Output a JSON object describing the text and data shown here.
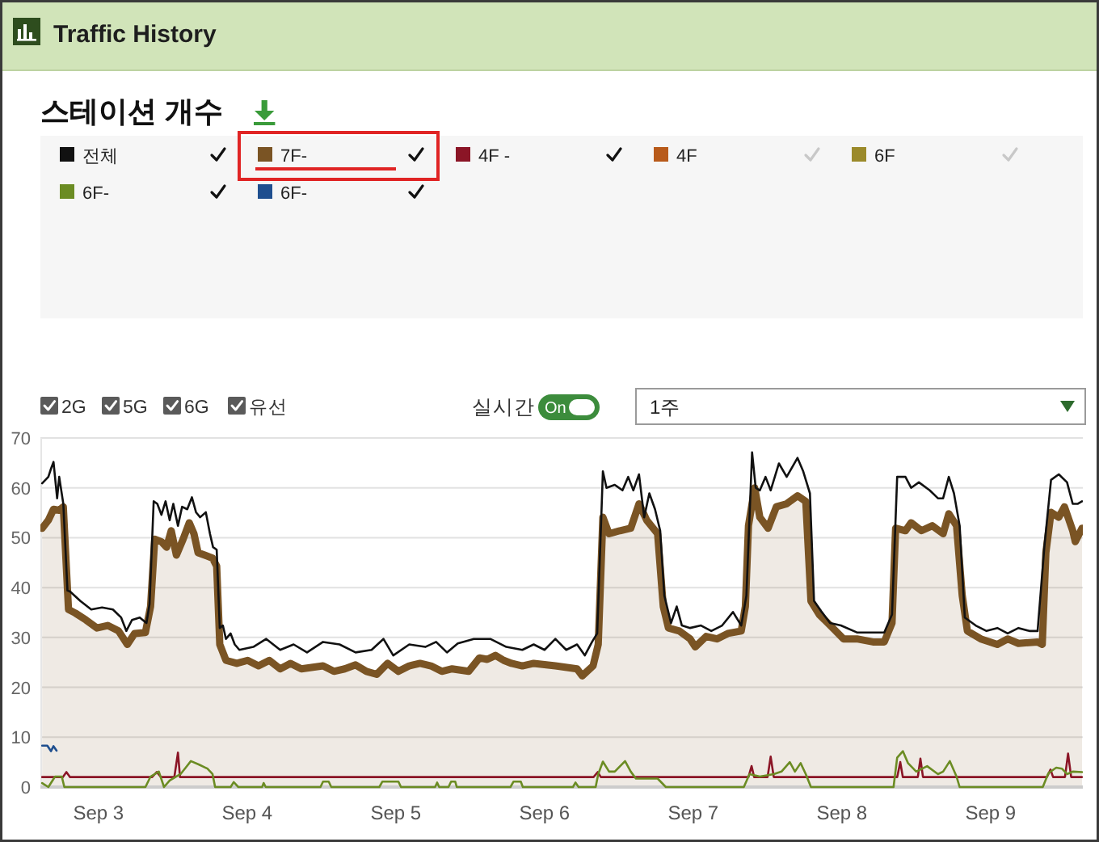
{
  "chart_data": {
    "type": "line",
    "title": "Traffic History",
    "subtitle": "스테이션 개수",
    "legend": "top",
    "grid": "y",
    "xlim": [
      "--09-02T14:38",
      "--09-09T14:53"
    ],
    "xticks": [
      {
        "value": "--09-03",
        "label": "Sep 3"
      },
      {
        "value": "--09-04",
        "label": "Sep 4"
      },
      {
        "value": "--09-05",
        "label": "Sep 5"
      },
      {
        "value": "--09-06",
        "label": "Sep 6"
      },
      {
        "value": "--09-07",
        "label": "Sep 7"
      },
      {
        "value": "--09-08",
        "label": "Sep 8"
      },
      {
        "value": "--09-09",
        "label": "Sep 9"
      }
    ],
    "ylim": [
      0,
      70
    ],
    "yticks": [
      0,
      10,
      20,
      30,
      40,
      50,
      60,
      70
    ],
    "annotations": [
      "2G",
      "5G",
      "6G",
      "유선",
      "실시간",
      "On",
      "1주"
    ],
    "series": [
      {
        "name": "전체",
        "color": "#111111",
        "x": [
          "--09-02T14:55",
          "--09-02T15:55",
          "--09-02T16:20",
          "--09-02T16:45",
          "--09-02T17:20",
          "--09-02T17:40",
          "--09-02T18:20",
          "--09-02T19:00",
          "--09-02T19:25",
          "--09-02T21:05",
          "--09-02T22:50",
          "--09-03T00:35",
          "--09-03T02:20",
          "--09-03T03:40",
          "--09-03T04:30",
          "--09-03T05:25",
          "--09-03T06:40",
          "--09-03T07:45",
          "--09-03T08:15",
          "--09-03T08:55",
          "--09-03T09:30",
          "--09-03T10:10",
          "--09-03T10:50",
          "--09-03T11:30",
          "--09-03T12:05",
          "--09-03T12:50",
          "--09-03T13:30",
          "--09-03T14:20",
          "--09-03T15:05",
          "--09-03T15:45",
          "--09-03T16:25",
          "--09-03T17:20",
          "--09-03T18:00",
          "--09-03T18:30",
          "--09-03T19:05",
          "--09-03T19:35",
          "--09-03T20:05",
          "--09-03T20:35",
          "--09-03T21:20",
          "--09-03T22:00",
          "--09-03T22:45",
          "--09-04T01:00",
          "--09-04T03:05",
          "--09-04T05:20",
          "--09-04T07:30",
          "--09-04T09:40",
          "--09-04T12:15",
          "--09-04T14:55",
          "--09-04T17:30",
          "--09-04T20:05",
          "--09-04T22:00",
          "--09-04T23:35",
          "--09-05T02:10",
          "--09-05T04:45",
          "--09-05T06:30",
          "--09-05T08:15",
          "--09-05T10:00",
          "--09-05T12:35",
          "--09-05T15:15",
          "--09-05T17:50",
          "--09-05T20:25",
          "--09-05T22:15",
          "--09-06T00:00",
          "--09-06T01:45",
          "--09-06T03:30",
          "--09-06T05:15",
          "--09-06T06:30",
          "--09-06T07:40",
          "--09-06T08:30",
          "--09-06T09:25",
          "--09-06T10:00",
          "--09-06T11:20",
          "--09-06T12:35",
          "--09-06T13:30",
          "--09-06T14:20",
          "--09-06T15:15",
          "--09-06T16:05",
          "--09-06T16:55",
          "--09-06T17:50",
          "--09-06T18:40",
          "--09-06T19:20",
          "--09-06T20:25",
          "--09-06T21:20",
          "--09-06T22:10",
          "--09-06T23:30",
          "--09-07T01:15",
          "--09-07T02:55",
          "--09-07T04:40",
          "--09-07T06:25",
          "--09-07T07:45",
          "--09-07T08:35",
          "--09-07T09:30",
          "--09-07T10:05",
          "--09-07T10:45",
          "--09-07T11:40",
          "--09-07T12:30",
          "--09-07T13:50",
          "--09-07T15:05",
          "--09-07T16:50",
          "--09-07T17:45",
          "--09-07T18:50",
          "--09-07T19:30",
          "--09-07T20:45",
          "--09-07T22:05",
          "--09-07T23:50",
          "--09-08T02:25",
          "--09-08T04:10",
          "--09-08T06:50",
          "--09-08T08:05",
          "--09-08T08:55",
          "--09-08T10:15",
          "--09-08T11:10",
          "--09-08T12:25",
          "--09-08T14:10",
          "--09-08T15:30",
          "--09-08T16:20",
          "--09-08T17:15",
          "--09-08T18:05",
          "--09-08T19:00",
          "--09-08T19:50",
          "--09-08T21:35",
          "--09-08T23:20",
          "--09-09T01:05",
          "--09-09T02:45",
          "--09-09T04:30",
          "--09-09T06:15",
          "--09-09T07:35",
          "--09-09T08:40",
          "--09-09T09:45",
          "--09-09T11:00",
          "--09-09T12:20",
          "--09-09T13:15",
          "--09-09T14:05",
          "--09-09T14:45"
        ],
        "values": [
          60.9,
          62.2,
          63.8,
          65.2,
          57.9,
          62.2,
          56.8,
          39.4,
          39.2,
          37.3,
          35.6,
          36.0,
          35.6,
          34.0,
          31.3,
          33.5,
          34.0,
          32.9,
          36.7,
          57.3,
          56.8,
          54.6,
          57.3,
          53.5,
          56.8,
          52.4,
          56.2,
          55.7,
          58.1,
          55.1,
          54.1,
          55.1,
          50.8,
          48.1,
          47.6,
          31.9,
          32.4,
          29.7,
          30.8,
          28.6,
          27.5,
          28.1,
          29.7,
          27.5,
          28.6,
          27.0,
          29.1,
          28.6,
          27.0,
          27.5,
          29.7,
          26.4,
          28.6,
          28.1,
          29.1,
          27.0,
          28.8,
          29.7,
          29.7,
          28.1,
          27.5,
          28.6,
          27.5,
          29.7,
          27.5,
          28.6,
          26.4,
          29.1,
          30.8,
          63.3,
          60.0,
          60.6,
          59.5,
          62.2,
          59.5,
          62.7,
          54.1,
          58.9,
          55.7,
          51.4,
          38.4,
          32.9,
          36.2,
          32.4,
          31.9,
          32.4,
          31.3,
          32.4,
          35.1,
          32.4,
          38.4,
          67.1,
          60.0,
          59.5,
          62.2,
          59.5,
          64.9,
          62.2,
          66.0,
          63.3,
          58.9,
          37.3,
          35.1,
          32.9,
          32.4,
          31.0,
          31.0,
          31.0,
          34.6,
          62.2,
          62.2,
          60.0,
          61.1,
          59.5,
          57.9,
          57.9,
          62.2,
          58.9,
          52.4,
          34.0,
          32.4,
          31.3,
          31.9,
          30.8,
          31.9,
          31.3,
          31.3,
          48.1,
          61.6,
          62.7,
          61.1,
          56.8,
          56.8,
          57.3
        ]
      },
      {
        "name": "7F-",
        "color": "#7a5424",
        "type": "area",
        "x": [
          "--09-02T14:55",
          "--09-02T15:55",
          "--09-02T16:45",
          "--09-02T17:40",
          "--09-02T18:20",
          "--09-02T18:50",
          "--09-02T19:10",
          "--09-02T20:15",
          "--09-02T22:00",
          "--09-02T23:45",
          "--09-03T01:30",
          "--09-03T03:15",
          "--09-03T04:40",
          "--09-03T05:50",
          "--09-03T07:35",
          "--09-03T08:25",
          "--09-03T09:05",
          "--09-03T10:10",
          "--09-03T11:00",
          "--09-03T11:45",
          "--09-03T12:35",
          "--09-03T13:40",
          "--09-03T14:40",
          "--09-03T15:25",
          "--09-03T16:05",
          "--09-03T17:10",
          "--09-03T18:25",
          "--09-03T19:05",
          "--09-03T19:35",
          "--09-03T20:35",
          "--09-03T22:20",
          "--09-04T00:05",
          "--09-04T01:50",
          "--09-04T03:35",
          "--09-04T05:20",
          "--09-04T07:00",
          "--09-04T08:45",
          "--09-04T12:15",
          "--09-04T14:00",
          "--09-04T15:45",
          "--09-04T17:30",
          "--09-04T19:15",
          "--09-04T20:55",
          "--09-04T22:40",
          "--09-05T00:25",
          "--09-05T02:10",
          "--09-05T03:55",
          "--09-05T05:40",
          "--09-05T07:25",
          "--09-05T09:05",
          "--09-05T11:45",
          "--09-05T13:30",
          "--09-05T14:45",
          "--09-05T16:05",
          "--09-05T17:25",
          "--09-05T18:40",
          "--09-05T20:25",
          "--09-05T22:15",
          "--09-06T01:45",
          "--09-06T05:15",
          "--09-06T06:05",
          "--09-06T07:50",
          "--09-06T08:40",
          "--09-06T09:25",
          "--09-06T10:25",
          "--09-06T12:10",
          "--09-06T13:55",
          "--09-06T15:15",
          "--09-06T16:30",
          "--09-06T18:15",
          "--09-06T19:10",
          "--09-06T20:00",
          "--09-06T21:45",
          "--09-06T23:30",
          "--09-07T00:20",
          "--09-07T02:05",
          "--09-07T03:50",
          "--09-07T05:35",
          "--09-07T07:45",
          "--09-07T08:25",
          "--09-07T08:55",
          "--09-07T09:55",
          "--09-07T10:45",
          "--09-07T12:05",
          "--09-07T13:25",
          "--09-07T15:05",
          "--09-07T16:50",
          "--09-07T18:10",
          "--09-07T19:00",
          "--09-07T20:20",
          "--09-07T23:00",
          "--09-08T00:15",
          "--09-08T02:25",
          "--09-08T05:00",
          "--09-08T06:50",
          "--09-08T08:05",
          "--09-08T08:40",
          "--09-08T10:15",
          "--09-08T11:10",
          "--09-08T12:50",
          "--09-08T14:35",
          "--09-08T16:20",
          "--09-08T17:15",
          "--09-08T18:30",
          "--09-08T19:25",
          "--09-08T20:15",
          "--09-08T22:25",
          "--09-09T01:05",
          "--09-09T02:45",
          "--09-09T04:30",
          "--09-09T07:35",
          "--09-09T08:20",
          "--09-09T08:55",
          "--09-09T09:45",
          "--09-09T11:00",
          "--09-09T11:55",
          "--09-09T13:15",
          "--09-09T13:40",
          "--09-09T14:45"
        ],
        "values": [
          51.9,
          53.5,
          55.7,
          55.5,
          56.2,
          43.8,
          35.6,
          34.9,
          33.5,
          31.9,
          32.4,
          31.3,
          28.6,
          30.8,
          31.0,
          36.2,
          49.7,
          49.2,
          48.1,
          51.4,
          46.5,
          49.7,
          53.0,
          50.8,
          47.0,
          46.5,
          45.9,
          44.3,
          28.6,
          25.4,
          24.8,
          25.4,
          24.3,
          25.4,
          23.7,
          24.8,
          23.7,
          24.3,
          23.2,
          23.7,
          24.5,
          23.2,
          22.6,
          24.8,
          23.2,
          24.3,
          24.8,
          24.3,
          23.2,
          23.7,
          23.2,
          25.9,
          25.6,
          26.4,
          25.4,
          24.8,
          24.3,
          24.8,
          24.3,
          23.7,
          22.3,
          24.3,
          28.6,
          54.1,
          50.8,
          51.4,
          51.9,
          56.8,
          53.5,
          50.8,
          36.2,
          31.9,
          31.3,
          29.7,
          28.1,
          30.2,
          29.7,
          30.8,
          31.3,
          36.2,
          52.4,
          60.0,
          54.1,
          51.9,
          56.2,
          56.8,
          58.4,
          57.3,
          37.3,
          34.6,
          31.3,
          29.7,
          29.7,
          29.1,
          29.1,
          32.9,
          51.9,
          51.4,
          53.0,
          51.4,
          52.4,
          50.8,
          54.8,
          52.4,
          38.4,
          31.3,
          29.7,
          28.6,
          29.7,
          28.8,
          29.1,
          28.6,
          47.0,
          55.1,
          54.1,
          56.2,
          51.4,
          49.2,
          51.9
        ]
      },
      {
        "name": "4F -",
        "color": "#8b1526",
        "x": [
          "--09-02T14:55",
          "--09-02T18:15",
          "--09-02T18:50",
          "--09-02T19:25",
          "--09-03T08:40",
          "--09-03T09:25",
          "--09-03T10:05",
          "--09-03T12:15",
          "--09-03T12:50",
          "--09-03T13:10",
          "--09-06T07:55",
          "--09-06T08:35",
          "--09-06T09:05",
          "--09-07T08:55",
          "--09-07T09:25",
          "--09-07T09:50",
          "--09-07T12:00",
          "--09-07T12:30",
          "--09-07T13:00",
          "--09-08T08:55",
          "--09-08T09:25",
          "--09-08T09:50",
          "--09-08T12:15",
          "--09-08T12:40",
          "--09-08T13:05",
          "--09-09T09:05",
          "--09-09T09:40",
          "--09-09T10:05",
          "--09-09T12:00",
          "--09-09T12:30",
          "--09-09T13:00",
          "--09-09T14:45"
        ],
        "values": [
          2,
          2,
          3,
          2,
          2,
          3,
          2,
          2,
          6.9,
          2,
          2,
          3,
          2,
          2,
          4.2,
          2,
          2,
          6.1,
          2,
          2,
          5,
          2,
          2,
          5.7,
          2,
          2,
          3.5,
          2,
          2,
          6.7,
          2,
          2
        ]
      },
      {
        "name": "4F",
        "color": "#b85a1a"
      },
      {
        "name": "6F",
        "color": "#9b8a2a"
      },
      {
        "name": "6F-",
        "color": "#6b8c23",
        "x": [
          "--09-02T14:55",
          "--09-02T15:55",
          "--09-02T17:00",
          "--09-02T18:05",
          "--09-02T18:30",
          "--09-03T07:35",
          "--09-03T08:25",
          "--09-03T09:45",
          "--09-03T10:35",
          "--09-03T11:30",
          "--09-03T13:15",
          "--09-03T14:05",
          "--09-03T14:55",
          "--09-03T16:15",
          "--09-03T17:35",
          "--09-03T18:25",
          "--09-03T18:50",
          "--09-03T21:20",
          "--09-03T21:50",
          "--09-03T22:35",
          "--09-04T02:25",
          "--09-04T02:40",
          "--09-04T03:00",
          "--09-04T11:50",
          "--09-04T12:15",
          "--09-04T13:10",
          "--09-04T13:35",
          "--09-04T21:20",
          "--09-04T21:50",
          "--09-05T00:25",
          "--09-05T00:50",
          "--09-05T06:20",
          "--09-05T06:40",
          "--09-05T07:00",
          "--09-05T08:30",
          "--09-05T08:55",
          "--09-05T09:35",
          "--09-05T09:50",
          "--09-05T18:30",
          "--09-05T19:00",
          "--09-05T20:10",
          "--09-05T20:30",
          "--09-06T04:35",
          "--09-06T05:00",
          "--09-06T05:30",
          "--09-06T08:15",
          "--09-06T08:40",
          "--09-06T09:25",
          "--09-06T10:25",
          "--09-06T11:20",
          "--09-06T13:00",
          "--09-06T13:55",
          "--09-06T14:45",
          "--09-06T16:30",
          "--09-06T18:15",
          "--09-06T19:35",
          "--09-07T08:10",
          "--09-07T09:05",
          "--09-07T10:45",
          "--09-07T13:00",
          "--09-07T14:15",
          "--09-07T15:35",
          "--09-07T16:25",
          "--09-07T17:20",
          "--09-07T18:10",
          "--09-07T19:00",
          "--09-08T08:20",
          "--09-08T08:55",
          "--09-08T09:50",
          "--09-08T10:40",
          "--09-08T12:00",
          "--09-08T13:45",
          "--09-08T15:30",
          "--09-08T16:20",
          "--09-08T17:25",
          "--09-08T18:30",
          "--09-08T19:00",
          "--09-09T08:25",
          "--09-09T09:20",
          "--09-09T10:35",
          "--09-09T11:30",
          "--09-09T12:20",
          "--09-09T13:15",
          "--09-09T14:45"
        ],
        "values": [
          0.8,
          0,
          2.1,
          2.1,
          0,
          0,
          2.1,
          3.1,
          0,
          1.3,
          2.6,
          3.9,
          5.2,
          4.5,
          3.7,
          2.6,
          0,
          0,
          1.0,
          0,
          0,
          0.8,
          0,
          0,
          1.1,
          1.1,
          0,
          0,
          1.1,
          1.1,
          0,
          0,
          0.9,
          0,
          0,
          1.1,
          1.1,
          0,
          0,
          1.1,
          1.1,
          0,
          0,
          0.9,
          0,
          0,
          2.6,
          5.1,
          3.1,
          3.1,
          5.2,
          3.1,
          1.7,
          1.7,
          1.7,
          0,
          0,
          2.6,
          2.1,
          2.6,
          3.1,
          5.0,
          3.1,
          4.8,
          2.6,
          0,
          0,
          5.9,
          7.2,
          4.8,
          3.1,
          4.2,
          2.6,
          3.1,
          5.2,
          2.1,
          0,
          0,
          2.8,
          3.9,
          3.7,
          2.6,
          3.1,
          3.0
        ]
      },
      {
        "name": "6F-",
        "color": "#1f4f8f",
        "x": [
          "--09-02T14:55",
          "--09-02T15:45",
          "--09-02T16:20",
          "--09-02T16:45",
          "--09-02T17:15"
        ],
        "values": [
          8.3,
          8.3,
          7.2,
          8.2,
          7.3
        ]
      }
    ]
  }
}
